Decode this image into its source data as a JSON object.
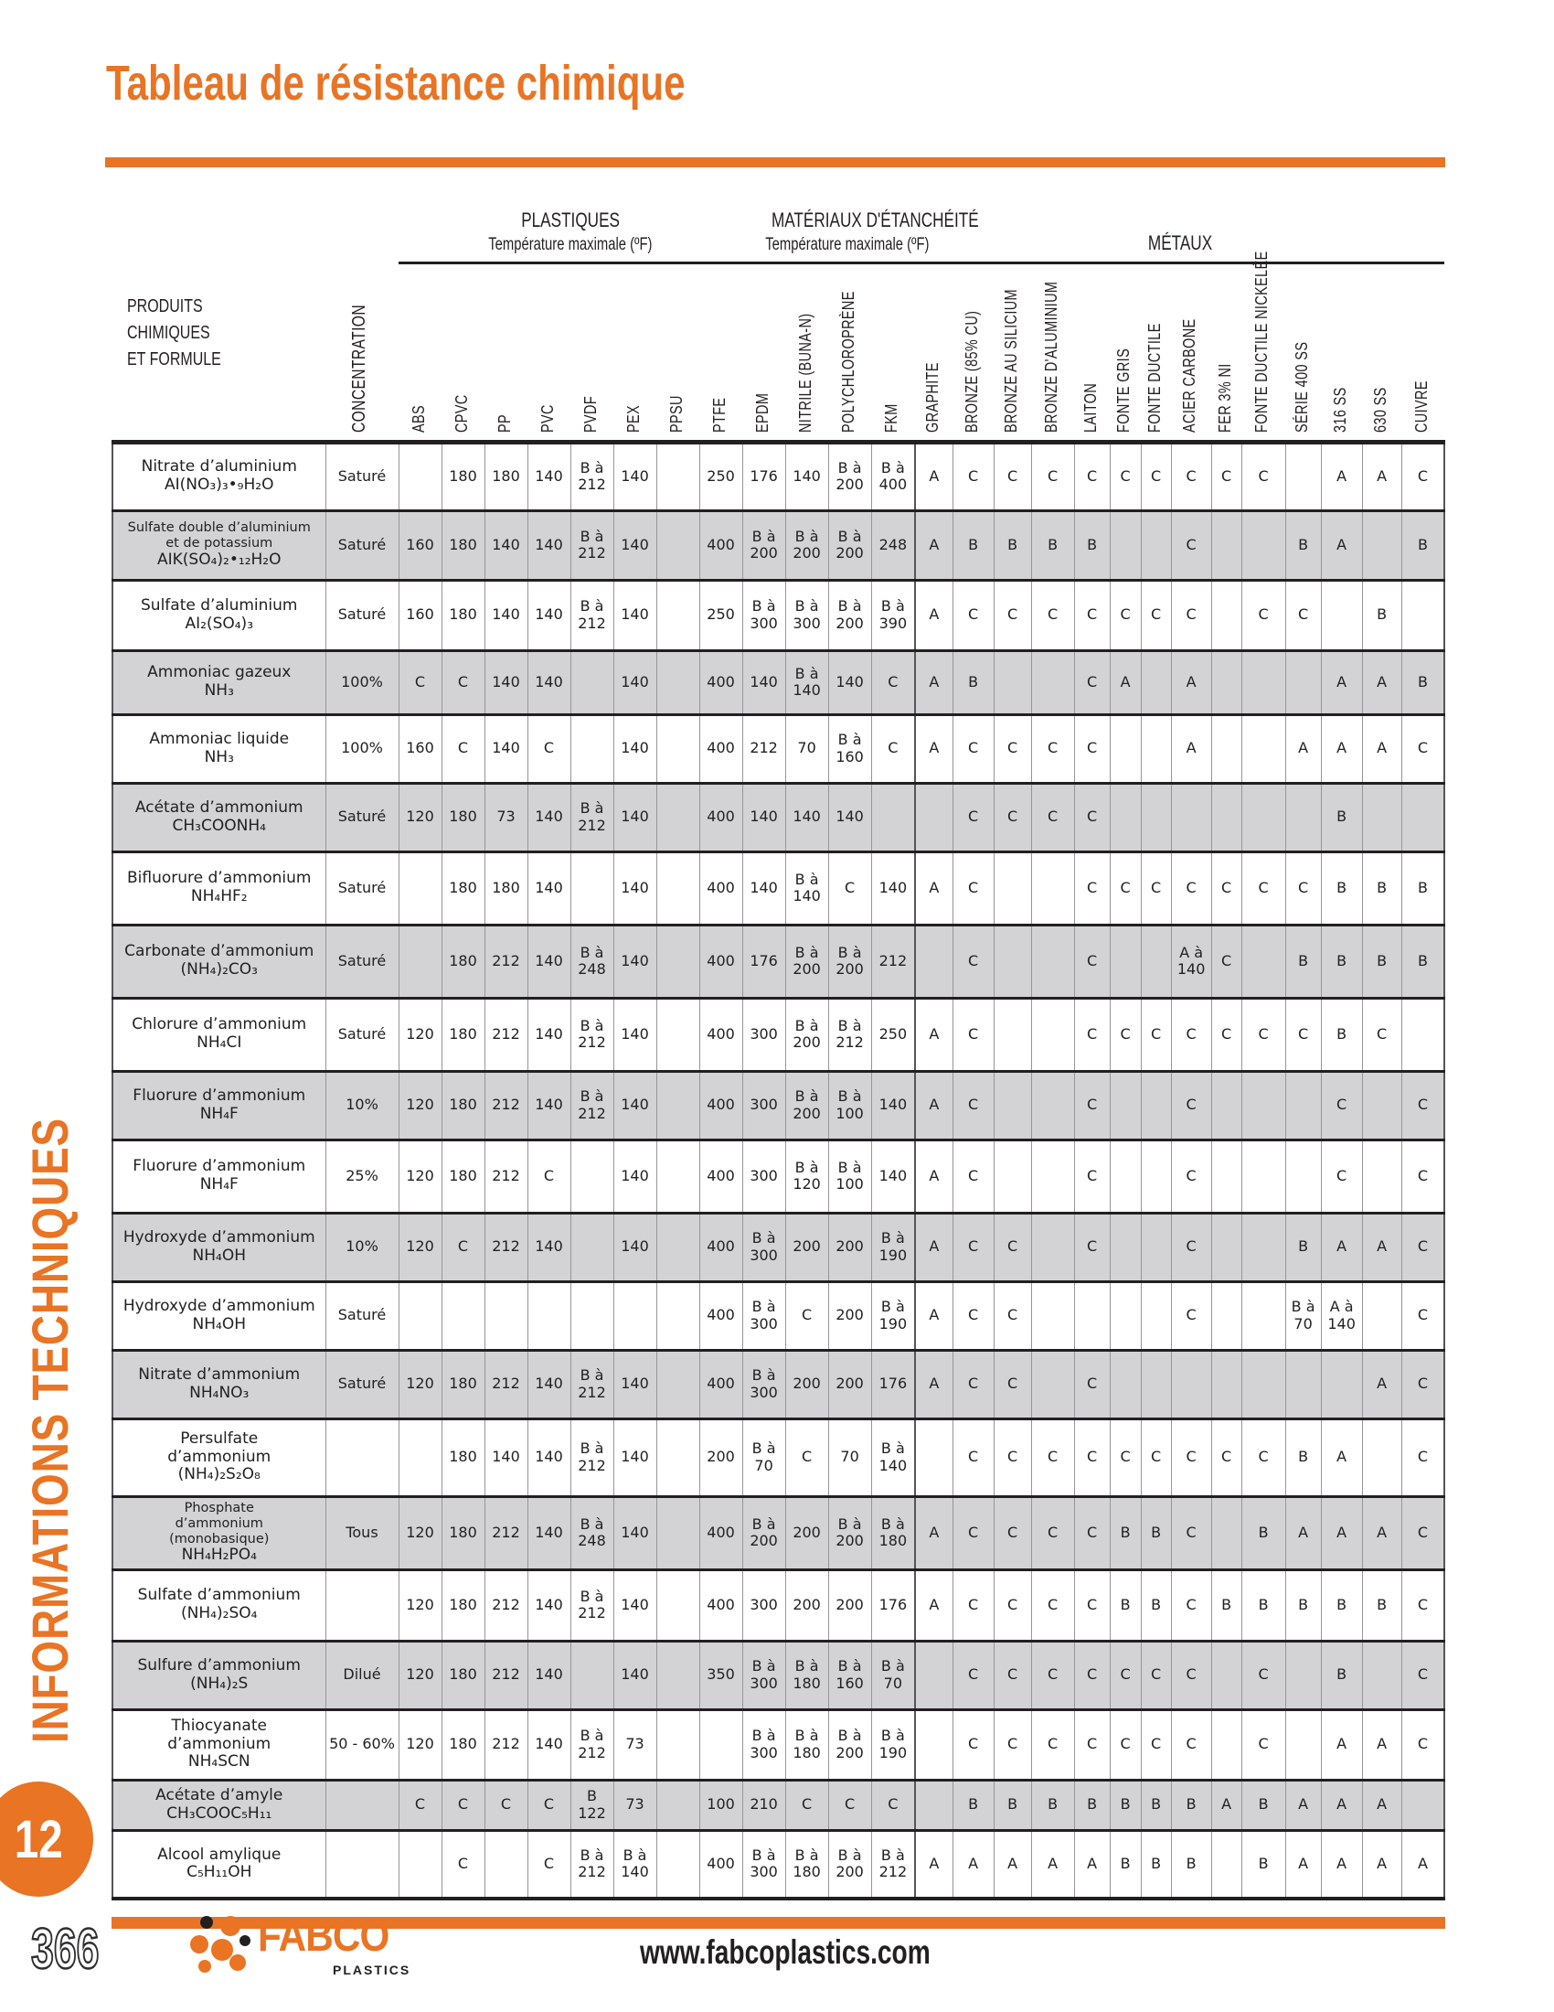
{
  "page": {
    "title": "Tableau de résistance chimique",
    "page_number": "366",
    "website": "www.fabcoplastics.com",
    "sidebar_label": "INFORMATIONS TECHNIQUES",
    "chapter_badge": "12",
    "accent_color": "#E87424",
    "row_alt_color": "#D3D3D5"
  },
  "logo": {
    "name": "FABCO",
    "sub": "PLASTICS"
  },
  "table": {
    "row_header": "PRODUITS CHIMIQUES\nET FORMULE",
    "concentration_label": "CONCENTRATION",
    "groups": [
      {
        "label": "PLASTIQUES",
        "sublabel": "Température maximale (ºF)"
      },
      {
        "label": "MATÉRIAUX D'ÉTANCHÉITÉ",
        "sublabel": "Température maximale (ºF)"
      },
      {
        "label": "MÉTAUX",
        "sublabel": ""
      }
    ],
    "columns": [
      "ABS",
      "CPVC",
      "PP",
      "PVC",
      "PVDF",
      "PEX",
      "PPSU",
      "PTFE",
      "EPDM",
      "NITRILE (BUNA-N)",
      "POLYCHLOROPRÈNE",
      "FKM",
      "GRAPHITE",
      "BRONZE  (85% CU)",
      "BRONZE AU SILICIUM",
      "BRONZE D'ALUMINIUM",
      "LAITON",
      "FONTE GRIS",
      "FONTE DUCTILE",
      "ACIER CARBONE",
      "FER 3% NI",
      "FONTE DUCTILE NICKELÉE",
      "SÉRIE 400 SS",
      "316 SS",
      "630 SS",
      "CUIVRE"
    ],
    "rows": [
      {
        "name": "Nitrate d’aluminium",
        "formula": "AI(NO₃)₃•₉H₂O",
        "concentration": "Saturé",
        "values": [
          "",
          "180",
          "180",
          "140",
          "B à 212",
          "140",
          "",
          "250",
          "176",
          "140",
          "B à 200",
          "B à 400",
          "A",
          "C",
          "C",
          "C",
          "C",
          "C",
          "C",
          "C",
          "C",
          "C",
          "",
          "A",
          "A",
          "C"
        ]
      },
      {
        "name": "Sulfate double d’aluminium\net de potassium",
        "formula": "AIK(SO₄)₂•₁₂H₂O",
        "concentration": "Saturé",
        "values": [
          "160",
          "180",
          "140",
          "140",
          "B à 212",
          "140",
          "",
          "400",
          "B à 200",
          "B à 200",
          "B à 200",
          "248",
          "A",
          "B",
          "B",
          "B",
          "B",
          "",
          "",
          "C",
          "",
          "",
          "B",
          "A",
          "",
          "B"
        ]
      },
      {
        "name": "Sulfate d’aluminium",
        "formula": "AI₂(SO₄)₃",
        "concentration": "Saturé",
        "values": [
          "160",
          "180",
          "140",
          "140",
          "B à 212",
          "140",
          "",
          "250",
          "B à 300",
          "B à 300",
          "B à 200",
          "B à 390",
          "A",
          "C",
          "C",
          "C",
          "C",
          "C",
          "C",
          "C",
          "",
          "C",
          "C",
          "",
          "B",
          ""
        ]
      },
      {
        "name": "Ammoniac gazeux",
        "formula": "NH₃",
        "concentration": "100%",
        "values": [
          "C",
          "C",
          "140",
          "140",
          "",
          "140",
          "",
          "400",
          "140",
          "B à 140",
          "140",
          "C",
          "A",
          "B",
          "",
          "",
          "C",
          "A",
          "",
          "A",
          "",
          "",
          "",
          "A",
          "A",
          "B"
        ]
      },
      {
        "name": "Ammoniac liquide",
        "formula": "NH₃",
        "concentration": "100%",
        "values": [
          "160",
          "C",
          "140",
          "C",
          "",
          "140",
          "",
          "400",
          "212",
          "70",
          "B à 160",
          "C",
          "A",
          "C",
          "C",
          "C",
          "C",
          "",
          "",
          "A",
          "",
          "",
          "A",
          "A",
          "A",
          "C"
        ]
      },
      {
        "name": "Acétate d’ammonium",
        "formula": "CH₃COONH₄",
        "concentration": "Saturé",
        "values": [
          "120",
          "180",
          "73",
          "140",
          "B à 212",
          "140",
          "",
          "400",
          "140",
          "140",
          "140",
          "",
          "",
          "C",
          "C",
          "C",
          "C",
          "",
          "",
          "",
          "",
          "",
          "",
          "B",
          "",
          ""
        ]
      },
      {
        "name": "Bifluorure d’ammonium",
        "formula": "NH₄HF₂",
        "concentration": "Saturé",
        "values": [
          "",
          "180",
          "180",
          "140",
          "",
          "140",
          "",
          "400",
          "140",
          "B à 140",
          "C",
          "140",
          "A",
          "C",
          "",
          "",
          "C",
          "C",
          "C",
          "C",
          "C",
          "C",
          "C",
          "B",
          "B",
          "B"
        ]
      },
      {
        "name": "Carbonate d’ammonium",
        "formula": "(NH₄)₂CO₃",
        "concentration": "Saturé",
        "values": [
          "",
          "180",
          "212",
          "140",
          "B à 248",
          "140",
          "",
          "400",
          "176",
          "B à 200",
          "B à 200",
          "212",
          "",
          "C",
          "",
          "",
          "C",
          "",
          "",
          "A à 140",
          "C",
          "",
          "B",
          "B",
          "B",
          "B"
        ]
      },
      {
        "name": "Chlorure d’ammonium",
        "formula": "NH₄CI",
        "concentration": "Saturé",
        "values": [
          "120",
          "180",
          "212",
          "140",
          "B à 212",
          "140",
          "",
          "400",
          "300",
          "B à 200",
          "B à 212",
          "250",
          "A",
          "C",
          "",
          "",
          "C",
          "C",
          "C",
          "C",
          "C",
          "C",
          "C",
          "B",
          "C",
          ""
        ]
      },
      {
        "name": "Fluorure d’ammonium",
        "formula": "NH₄F",
        "concentration": "10%",
        "values": [
          "120",
          "180",
          "212",
          "140",
          "B à 212",
          "140",
          "",
          "400",
          "300",
          "B à 200",
          "B à 100",
          "140",
          "A",
          "C",
          "",
          "",
          "C",
          "",
          "",
          "C",
          "",
          "",
          "",
          "C",
          "",
          "C"
        ]
      },
      {
        "name": "Fluorure d’ammonium",
        "formula": "NH₄F",
        "concentration": "25%",
        "values": [
          "120",
          "180",
          "212",
          "C",
          "",
          "140",
          "",
          "400",
          "300",
          "B à 120",
          "B à 100",
          "140",
          "A",
          "C",
          "",
          "",
          "C",
          "",
          "",
          "C",
          "",
          "",
          "",
          "C",
          "",
          "C"
        ]
      },
      {
        "name": "Hydroxyde d’ammonium",
        "formula": "NH₄OH",
        "concentration": "10%",
        "values": [
          "120",
          "C",
          "212",
          "140",
          "",
          "140",
          "",
          "400",
          "B à 300",
          "200",
          "200",
          "B à 190",
          "A",
          "C",
          "C",
          "",
          "C",
          "",
          "",
          "C",
          "",
          "",
          "B",
          "A",
          "A",
          "C"
        ]
      },
      {
        "name": "Hydroxyde d’ammonium",
        "formula": "NH₄OH",
        "concentration": "Saturé",
        "values": [
          "",
          "",
          "",
          "",
          "",
          "",
          "",
          "400",
          "B à 300",
          "C",
          "200",
          "B à 190",
          "A",
          "C",
          "C",
          "",
          "",
          "",
          "",
          "C",
          "",
          "",
          "B à 70",
          "A à 140",
          "",
          "C"
        ]
      },
      {
        "name": "Nitrate d’ammonium",
        "formula": "NH₄NO₃",
        "concentration": "Saturé",
        "values": [
          "120",
          "180",
          "212",
          "140",
          "B à 212",
          "140",
          "",
          "400",
          "B à 300",
          "200",
          "200",
          "176",
          "A",
          "C",
          "C",
          "",
          "C",
          "",
          "",
          "",
          "",
          "",
          "",
          "",
          "A",
          "C"
        ]
      },
      {
        "name": "Persulfate\nd’ammonium",
        "formula": "(NH₄)₂S₂O₈",
        "concentration": "",
        "values": [
          "",
          "180",
          "140",
          "140",
          "B à 212",
          "140",
          "",
          "200",
          "B à 70",
          "C",
          "70",
          "B à 140",
          "",
          "C",
          "C",
          "C",
          "C",
          "C",
          "C",
          "C",
          "C",
          "C",
          "B",
          "A",
          "",
          "C"
        ]
      },
      {
        "name": "Phosphate\nd’ammonium\n(monobasique)",
        "formula": "NH₄H₂PO₄",
        "concentration": "Tous",
        "values": [
          "120",
          "180",
          "212",
          "140",
          "B à 248",
          "140",
          "",
          "400",
          "B à 200",
          "200",
          "B à 200",
          "B à 180",
          "A",
          "C",
          "C",
          "C",
          "C",
          "B",
          "B",
          "C",
          "",
          "B",
          "A",
          "A",
          "A",
          "C"
        ]
      },
      {
        "name": "Sulfate d’ammonium",
        "formula": "(NH₄)₂SO₄",
        "concentration": "",
        "values": [
          "120",
          "180",
          "212",
          "140",
          "B à 212",
          "140",
          "",
          "400",
          "300",
          "200",
          "200",
          "176",
          "A",
          "C",
          "C",
          "C",
          "C",
          "B",
          "B",
          "C",
          "B",
          "B",
          "B",
          "B",
          "B",
          "C"
        ]
      },
      {
        "name": "Sulfure d’ammonium",
        "formula": "(NH₄)₂S",
        "concentration": "Dilué",
        "values": [
          "120",
          "180",
          "212",
          "140",
          "",
          "140",
          "",
          "350",
          "B à 300",
          "B à 180",
          "B à 160",
          "B à 70",
          "",
          "C",
          "C",
          "C",
          "C",
          "C",
          "C",
          "C",
          "",
          "C",
          "",
          "B",
          "",
          "C"
        ]
      },
      {
        "name": "Thiocyanate\nd’ammonium",
        "formula": "NH₄SCN",
        "concentration": "50 - 60%",
        "values": [
          "120",
          "180",
          "212",
          "140",
          "B à 212",
          "73",
          "",
          "",
          "B à 300",
          "B à 180",
          "B à 200",
          "B à 190",
          "",
          "C",
          "C",
          "C",
          "C",
          "C",
          "C",
          "C",
          "",
          "C",
          "",
          "A",
          "A",
          "C"
        ]
      },
      {
        "name": "Acétate d’amyle",
        "formula": "CH₃COOC₅H₁₁",
        "concentration": "",
        "values": [
          "C",
          "C",
          "C",
          "C",
          "B 122",
          "73",
          "",
          "100",
          "210",
          "C",
          "C",
          "C",
          "",
          "B",
          "B",
          "B",
          "B",
          "B",
          "B",
          "B",
          "A",
          "B",
          "A",
          "A",
          "A",
          ""
        ]
      },
      {
        "name": "Alcool amylique",
        "formula": "C₅H₁₁OH",
        "concentration": "",
        "values": [
          "",
          "C",
          "",
          "C",
          "B à 212",
          "B à 140",
          "",
          "400",
          "B à 300",
          "B à 180",
          "B à 200",
          "B à 212",
          "A",
          "A",
          "A",
          "A",
          "A",
          "B",
          "B",
          "B",
          "",
          "B",
          "A",
          "A",
          "A",
          "A"
        ]
      }
    ]
  }
}
